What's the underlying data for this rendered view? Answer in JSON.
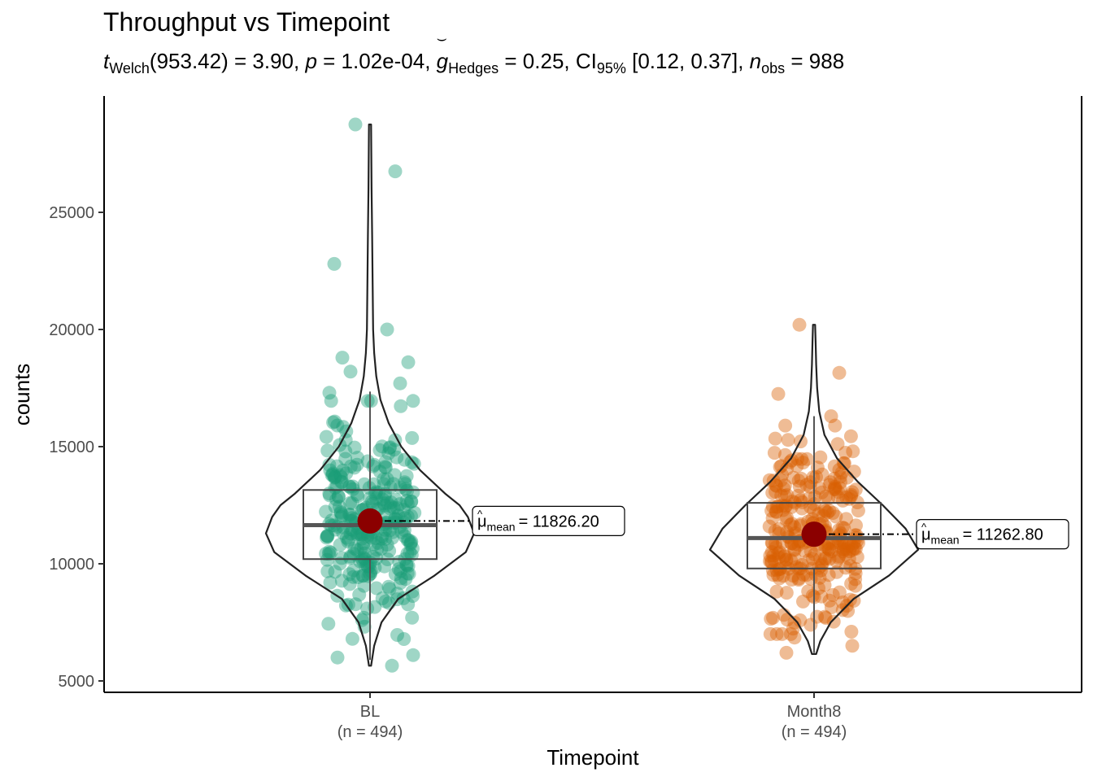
{
  "chart_data": {
    "type": "violin",
    "title": "Throughput vs Timepoint",
    "subtitle": {
      "t_label": "t",
      "t_sub": "Welch",
      "t_text": "(953.42) = 3.90, ",
      "p_label": "p",
      "p_text": " = 1.02e-04, ",
      "g_label": "g",
      "g_sub": "Hedges",
      "g_text": " = 0.25, CI",
      "ci_sub": "95%",
      "ci_text": " [0.12, 0.37], ",
      "n_label": "n",
      "n_sub": "obs",
      "n_text": " = 988"
    },
    "xlabel": "Timepoint",
    "ylabel": "counts",
    "ylim": [
      4500,
      29500
    ],
    "yticks": [
      5000,
      10000,
      15000,
      20000,
      25000
    ],
    "categories": [
      "BL",
      "Month8"
    ],
    "category_n": [
      "(n = 494)",
      "(n = 494)"
    ],
    "colors": {
      "BL": "#1B9E77",
      "Month8": "#D95F02",
      "mean": "#8B0000",
      "outline": "#333333"
    },
    "series": [
      {
        "name": "BL",
        "n": 494,
        "mean": 11826.2,
        "mean_label": "= 11826.20",
        "box": {
          "q1": 10200,
          "median": 11650,
          "q3": 13150,
          "whisker_low": 5900,
          "whisker_high": 17350
        },
        "violin": {
          "min": 5650,
          "max": 28750,
          "mode": 11300,
          "profile": [
            [
              5650,
              0.01
            ],
            [
              6500,
              0.04
            ],
            [
              7500,
              0.11
            ],
            [
              8500,
              0.27
            ],
            [
              9500,
              0.62
            ],
            [
              10500,
              0.92
            ],
            [
              11300,
              1.0
            ],
            [
              12000,
              0.94
            ],
            [
              12500,
              0.86
            ],
            [
              13000,
              0.72
            ],
            [
              14000,
              0.48
            ],
            [
              15000,
              0.3
            ],
            [
              16000,
              0.18
            ],
            [
              17000,
              0.1
            ],
            [
              18000,
              0.06
            ],
            [
              19000,
              0.04
            ],
            [
              20000,
              0.03
            ],
            [
              22000,
              0.025
            ],
            [
              24000,
              0.02
            ],
            [
              26000,
              0.015
            ],
            [
              28750,
              0.01
            ]
          ]
        },
        "outliers": [
          28750,
          26750,
          22800,
          20000,
          18800,
          18600,
          18200,
          17700,
          17300,
          5650,
          6000,
          6100
        ]
      },
      {
        "name": "Month8",
        "n": 494,
        "mean": 11262.8,
        "mean_label": "= 11262.80",
        "box": {
          "q1": 9800,
          "median": 11100,
          "q3": 12600,
          "whisker_low": 6200,
          "whisker_high": 16300
        },
        "violin": {
          "min": 6150,
          "max": 20200,
          "mode": 10600,
          "profile": [
            [
              6150,
              0.02
            ],
            [
              6700,
              0.06
            ],
            [
              7500,
              0.16
            ],
            [
              8500,
              0.38
            ],
            [
              9500,
              0.72
            ],
            [
              10600,
              1.0
            ],
            [
              11500,
              0.88
            ],
            [
              12500,
              0.66
            ],
            [
              13500,
              0.42
            ],
            [
              14500,
              0.22
            ],
            [
              15500,
              0.1
            ],
            [
              16500,
              0.05
            ],
            [
              17500,
              0.03
            ],
            [
              18500,
              0.02
            ],
            [
              19500,
              0.015
            ],
            [
              20200,
              0.01
            ]
          ]
        },
        "outliers": [
          20200,
          18150,
          17250,
          16300,
          6200,
          6500,
          6850
        ]
      }
    ],
    "mean_symbol": "μ",
    "mean_sub": "mean"
  }
}
